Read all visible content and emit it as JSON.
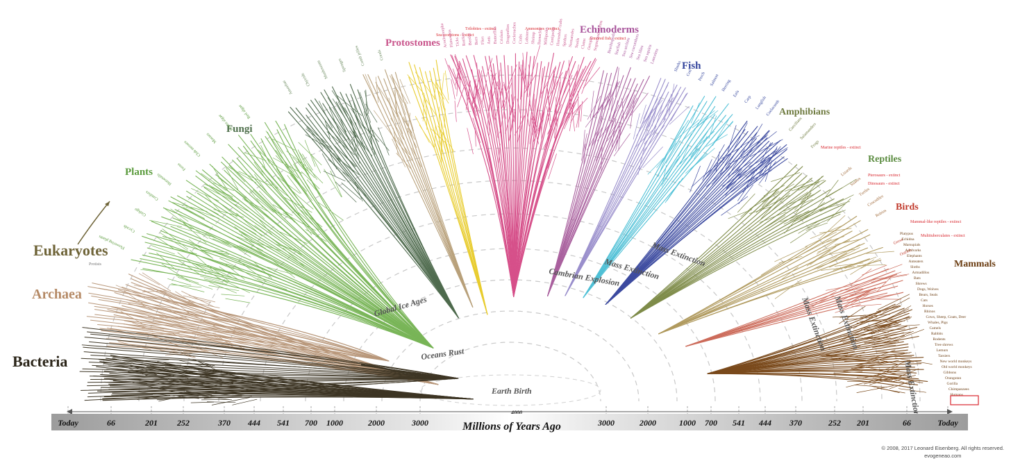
{
  "groups": {
    "bacteria": "Bacteria",
    "archaea": "Archaea",
    "eukaryotes": "Eukaryotes",
    "protists": "Protists",
    "plants": "Plants",
    "fungi": "Fungi",
    "protostomes": "Protostomes",
    "echinoderms": "Echinoderms",
    "fish": "Fish",
    "amphibians": "Amphibians",
    "reptiles": "Reptiles",
    "birds": "Birds",
    "mammals": "Mammals"
  },
  "events": {
    "global_ice_ages": "Global Ice Ages",
    "cambrian_explosion": "Cambrian Explosion",
    "mass_extinction": "Mass Extinction",
    "oceans_rust": "Oceans Rust",
    "earth_birth": "Earth Birth"
  },
  "extinct_labels": {
    "trilobites": "Trilobites - extinct",
    "sea_scorpions": "Sea scorpions - extinct",
    "ammonites": "Ammonites - extinct",
    "armored_fish": "Armored fish - extinct",
    "marine_reptiles": "Marine reptiles - extinct",
    "pterosaurs": "Pterosaurs - extinct",
    "dinosaurs": "Dinosaurs - extinct",
    "mammal_like_reptiles": "Mammal-like reptiles - extinct",
    "multituberculates": "Multituberculates - extinct"
  },
  "leaf_labels": {
    "plants": [
      "Flowering plants",
      "Cycads",
      "Ginkgo",
      "Conifers",
      "Horsetails",
      "Ferns",
      "Club mosses",
      "Mosses",
      "Green algae",
      "Red algae"
    ],
    "fungi": [
      "Amoebas",
      "Chytrids",
      "Mushrooms",
      "Sponges",
      "Comb jellies",
      "Corals"
    ],
    "protostomes": [
      "Acoelomorpha",
      "Flatworms",
      "Ticks",
      "Rotifers",
      "Beetles",
      "Bees",
      "Flies",
      "Ants",
      "Butterflies",
      "Crickets",
      "Dragonflies",
      "Cockroaches",
      "Crabs",
      "Lobsters",
      "Shrimp",
      "Barnacles",
      "Millipedes",
      "Centipedes",
      "Horseshoe crabs",
      "Spiders",
      "Nematodes",
      "Snails",
      "Clams",
      "Octopus",
      "Segmented worms"
    ],
    "echinoderms": [
      "Brachiopods",
      "Starfish",
      "Sea urchins",
      "Sea cucumbers",
      "Sea lilies",
      "Sea squirts",
      "Lancelets"
    ],
    "fish": [
      "Sharks",
      "Cod",
      "Perch",
      "Salmon",
      "Herring",
      "Eels",
      "Carp",
      "Lungfish",
      "Coelacanth"
    ],
    "amphibians": [
      "Caecilians",
      "Salamanders",
      "Frogs"
    ],
    "reptiles": [
      "Lizards",
      "Snakes",
      "Turtles",
      "Crocodiles",
      "Robins"
    ],
    "birds": [
      "Geese",
      "Ostrich"
    ],
    "mammals": [
      "Platypus",
      "Echidna",
      "Marsupials",
      "Aardvarks",
      "Elephants",
      "Anteaters",
      "Sloths",
      "Armadillos",
      "Bats",
      "Shrews",
      "Dogs, Wolves",
      "Bears, Seals",
      "Cats",
      "Horses",
      "Rhinos",
      "Cows, Sheep, Goats, Deer",
      "Whales, Pigs",
      "Camels",
      "Rabbits",
      "Rodents",
      "Tree shrews",
      "Lemurs",
      "Tarsiers",
      "New world monkeys",
      "Old world monkeys",
      "Gibbons",
      "Orangutan",
      "Gorilla",
      "Chimpanzees",
      "Humans"
    ]
  },
  "axis": {
    "title": "Millions of Years Ago",
    "center_tick": "4000",
    "left_ticks": [
      "Today",
      "66",
      "201",
      "252",
      "370",
      "444",
      "541",
      "700",
      "1000",
      "2000",
      "3000"
    ],
    "right_ticks": [
      "3000",
      "2000",
      "1000",
      "700",
      "541",
      "444",
      "370",
      "252",
      "201",
      "66",
      "Today"
    ]
  },
  "copyright": {
    "line1": "© 2008, 2017 Leonard Eisenberg. All rights reserved.",
    "line2": "evogeneao.com"
  },
  "colors": {
    "bacteria": "#3d3524",
    "archaea": "#b8977a",
    "plants": "#79b558",
    "fungi": "#4f6b4e",
    "sponges": "#b8a07a",
    "corals": "#e8cc2e",
    "protostomes": "#d6508a",
    "echinoderms": "#a9609e",
    "chordates": "#9a8fcc",
    "fish": "#3d4ba0",
    "fish_light": "#4fc0d6",
    "amphibians": "#7f8c4a",
    "reptiles": "#b09a5e",
    "birds": "#cc6b5a",
    "mammals": "#7a4a1c",
    "extinct": "#d8262d",
    "humans_box": "#d8262d"
  }
}
